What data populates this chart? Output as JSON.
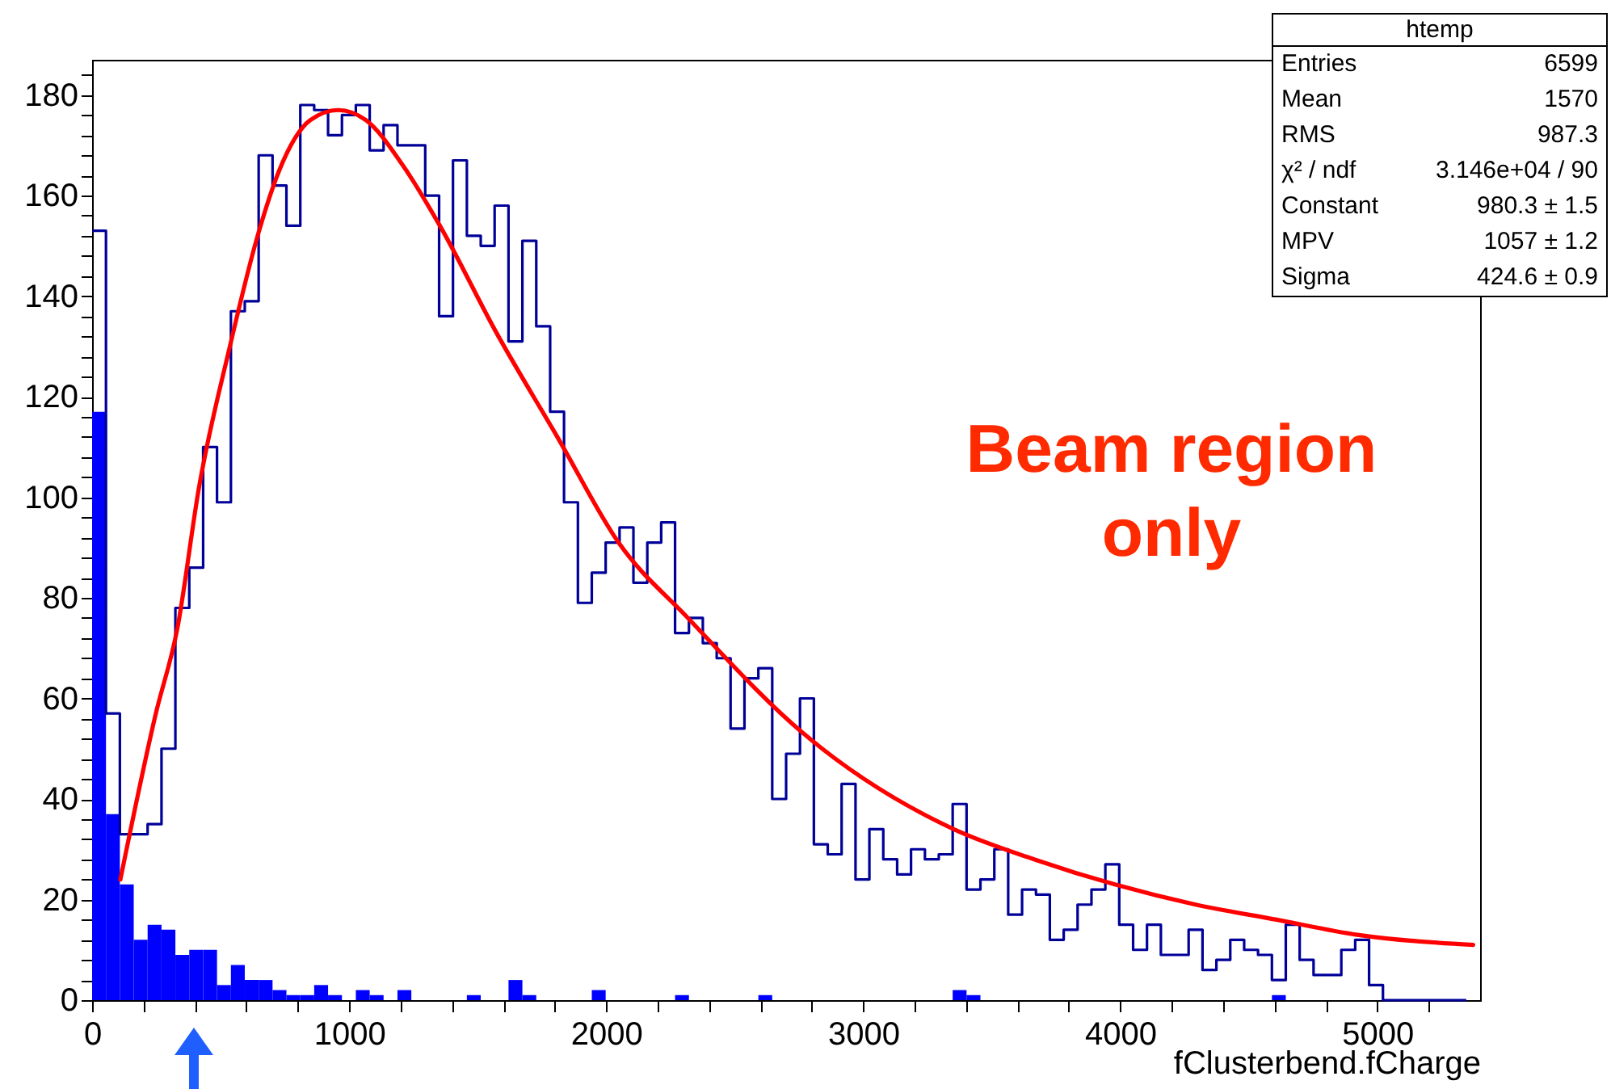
{
  "chart_data": {
    "type": "histogram",
    "xlabel": "fClusterbend.fCharge",
    "bins": [
      0,
      54,
      108,
      162,
      216,
      270,
      324,
      378,
      432,
      486,
      540,
      594,
      648,
      702,
      756,
      810,
      864,
      918,
      972,
      1026,
      1080,
      1134,
      1188,
      1242,
      1296,
      1350,
      1404,
      1458,
      1512,
      1566,
      1620,
      1674,
      1728,
      1782,
      1836,
      1890,
      1944,
      1998,
      2052,
      2106,
      2160,
      2214,
      2268,
      2322,
      2376,
      2430,
      2484,
      2538,
      2592,
      2646,
      2700,
      2754,
      2808,
      2862,
      2916,
      2970,
      3024,
      3078,
      3132,
      3186,
      3240,
      3294,
      3348,
      3402,
      3456,
      3510,
      3564,
      3618,
      3672,
      3726,
      3780,
      3834,
      3888,
      3942,
      3996,
      4050,
      4104,
      4158,
      4212,
      4266,
      4320,
      4374,
      4428,
      4482,
      4536,
      4590,
      4644,
      4698,
      4752,
      4806,
      4860,
      4914,
      4968,
      5022,
      5076,
      5130,
      5184,
      5238,
      5292,
      5346,
      5400
    ],
    "series": [
      {
        "color": "#0000ff",
        "values": [
          117,
          37,
          23,
          12,
          15,
          14,
          9,
          10,
          10,
          3,
          7,
          4,
          4,
          2,
          1,
          1,
          3,
          1,
          0,
          2,
          1,
          0,
          2,
          0,
          0,
          0,
          0,
          1,
          0,
          0,
          4,
          1,
          0,
          0,
          0,
          0,
          2,
          0,
          0,
          0,
          0,
          0,
          1,
          0,
          0,
          0,
          0,
          0,
          1,
          0,
          0,
          0,
          0,
          0,
          0,
          0,
          0,
          0,
          0,
          0,
          0,
          0,
          2,
          1,
          0,
          0,
          0,
          0,
          0,
          0,
          0,
          0,
          0,
          0,
          0,
          0,
          0,
          0,
          0,
          0,
          0,
          0,
          0,
          0,
          0,
          1,
          0,
          0,
          0,
          0,
          0,
          0,
          0,
          0,
          0,
          0,
          0,
          0,
          0,
          0
        ]
      },
      {
        "type": "step",
        "color": "#000099",
        "x": [
          0,
          54,
          108,
          162,
          216,
          270,
          324,
          378,
          432,
          486,
          540,
          594,
          648,
          702,
          756,
          810,
          864,
          918,
          972,
          1026,
          1080,
          1134,
          1188,
          1242,
          1296,
          1350,
          1404,
          1458,
          1512,
          1566,
          1620,
          1674,
          1728,
          1782,
          1836,
          1890,
          1944,
          1998,
          2052,
          2106,
          2160,
          2214,
          2268,
          2322,
          2376,
          2430,
          2484,
          2538,
          2592,
          2646,
          2700,
          2754,
          2808,
          2862,
          2916,
          2970,
          3024,
          3078,
          3132,
          3186,
          3240,
          3294,
          3348,
          3402,
          3456,
          3510,
          3564,
          3618,
          3672,
          3726,
          3780,
          3834,
          3888,
          3942,
          3996,
          4050,
          4104,
          4158,
          4212,
          4266,
          4320,
          4374,
          4428,
          4482,
          4536,
          4590,
          4644,
          4698,
          4752,
          4806,
          4860,
          4914,
          4968,
          5022,
          5076,
          5130,
          5184,
          5238,
          5292,
          5346
        ],
        "values": [
          153,
          57,
          33,
          33,
          35,
          50,
          78,
          86,
          110,
          99,
          137,
          139,
          168,
          162,
          154,
          178,
          177,
          172,
          176,
          178,
          169,
          174,
          170,
          170,
          160,
          136,
          167,
          152,
          150,
          158,
          131,
          151,
          134,
          117,
          99,
          79,
          85,
          91,
          94,
          83,
          91,
          95,
          73,
          76,
          71,
          68,
          54,
          64,
          66,
          40,
          49,
          60,
          31,
          29,
          43,
          24,
          34,
          28,
          25,
          30,
          28,
          29,
          39,
          22,
          24,
          30,
          17,
          22,
          21,
          12,
          14,
          19,
          22,
          27,
          15,
          10,
          15,
          9,
          9,
          14,
          6,
          8,
          12,
          10,
          9,
          4,
          15,
          8,
          5,
          5,
          10,
          12,
          3,
          0,
          0,
          0,
          0,
          0,
          0,
          0
        ]
      },
      {
        "type": "line",
        "color": "#ff0000",
        "x": [
          110,
          248,
          332,
          416,
          536,
          644,
          728,
          849,
          957,
          1065,
          1209,
          1353,
          1570,
          1810,
          2048,
          2318,
          2768,
          3352,
          3665,
          3979,
          4293,
          4608,
          4922,
          5373
        ],
        "values": [
          24,
          57,
          74,
          102,
          130,
          152,
          165,
          175,
          177,
          175,
          166,
          154,
          133,
          112,
          91,
          76,
          53,
          34,
          28,
          23,
          19,
          16,
          13,
          11
        ]
      }
    ],
    "xlim": [
      0,
      5400
    ],
    "ylim": [
      0,
      187
    ],
    "xticks": [
      0,
      {
        "value": 200,
        "label": null
      },
      {
        "value": 400,
        "label": null
      },
      {
        "value": 600,
        "label": null
      },
      {
        "value": 800,
        "label": null
      },
      1000,
      {
        "value": 1200,
        "label": null
      },
      {
        "value": 1400,
        "label": null
      },
      {
        "value": 1600,
        "label": null
      },
      {
        "value": 1800,
        "label": null
      },
      2000,
      {
        "value": 2200,
        "label": null
      },
      {
        "value": 2400,
        "label": null
      },
      {
        "value": 2600,
        "label": null
      },
      {
        "value": 2800,
        "label": null
      },
      3000,
      {
        "value": 3200,
        "label": null
      },
      {
        "value": 3400,
        "label": null
      },
      {
        "value": 3600,
        "label": null
      },
      {
        "value": 3800,
        "label": null
      },
      4000,
      {
        "value": 4200,
        "label": null
      },
      {
        "value": 4400,
        "label": null
      },
      {
        "value": 4600,
        "label": null
      },
      {
        "value": 4800,
        "label": null
      },
      5000,
      {
        "value": 5200,
        "label": null
      }
    ],
    "yticks": [
      0,
      {
        "value": 4,
        "label": null
      },
      {
        "value": 8,
        "label": null
      },
      {
        "value": 12,
        "label": null
      },
      {
        "value": 16,
        "label": null
      },
      20,
      {
        "value": 24,
        "label": null
      },
      {
        "value": 28,
        "label": null
      },
      {
        "value": 32,
        "label": null
      },
      {
        "value": 36,
        "label": null
      },
      40,
      {
        "value": 44,
        "label": null
      },
      {
        "value": 48,
        "label": null
      },
      {
        "value": 52,
        "label": null
      },
      {
        "value": 56,
        "label": null
      },
      60,
      {
        "value": 64,
        "label": null
      },
      {
        "value": 68,
        "label": null
      },
      {
        "value": 72,
        "label": null
      },
      {
        "value": 76,
        "label": null
      },
      80,
      {
        "value": 84,
        "label": null
      },
      {
        "value": 88,
        "label": null
      },
      {
        "value": 92,
        "label": null
      },
      {
        "value": 96,
        "label": null
      },
      100,
      {
        "value": 104,
        "label": null
      },
      {
        "value": 108,
        "label": null
      },
      {
        "value": 112,
        "label": null
      },
      {
        "value": 116,
        "label": null
      },
      120,
      {
        "value": 124,
        "label": null
      },
      {
        "value": 128,
        "label": null
      },
      {
        "value": 132,
        "label": null
      },
      {
        "value": 136,
        "label": null
      },
      140,
      {
        "value": 144,
        "label": null
      },
      {
        "value": 148,
        "label": null
      },
      {
        "value": 152,
        "label": null
      },
      {
        "value": 156,
        "label": null
      },
      160,
      {
        "value": 164,
        "label": null
      },
      {
        "value": 168,
        "label": null
      },
      {
        "value": 172,
        "label": null
      },
      {
        "value": 176,
        "label": null
      },
      180,
      {
        "value": 184,
        "label": null
      }
    ],
    "annotations": [
      "htemp",
      "Entries",
      "6599",
      "Mean",
      "1570",
      "RMS",
      "987.3",
      "χ² / ndf",
      "3.146e+04 / 90",
      "Constant",
      "980.3 ± 1.5",
      "MPV",
      "1057 ± 1.2",
      "Sigma",
      "424.6 ± 0.9",
      "Beam region only"
    ]
  }
}
